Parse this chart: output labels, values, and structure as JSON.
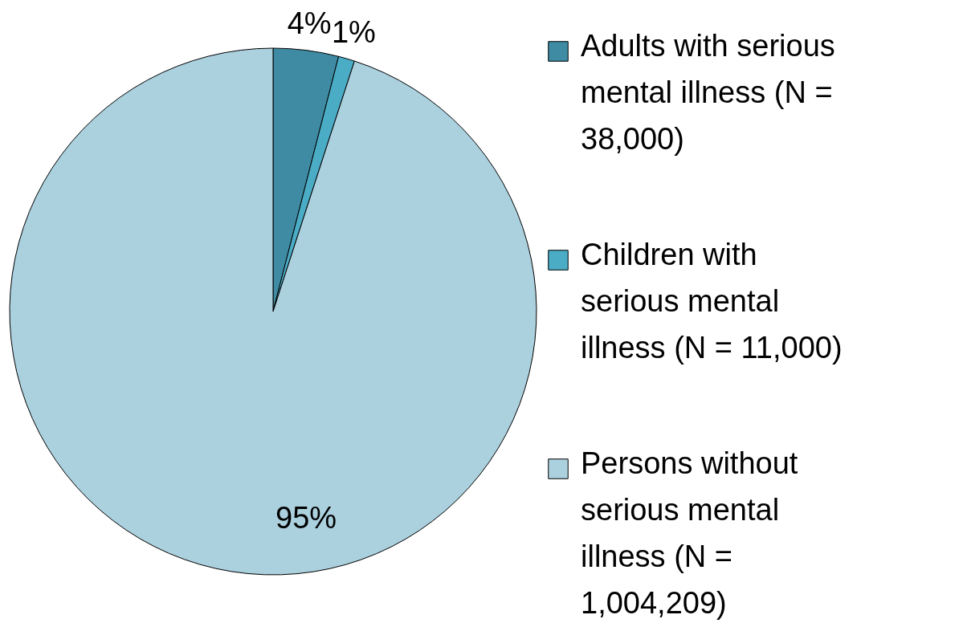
{
  "chart_data": {
    "type": "pie",
    "categories": [
      "Adults with serious mental illness (N = 38,000)",
      "Children with serious mental illness (N = 11,000)",
      "Persons without serious mental illness (N = 1,004,209)"
    ],
    "values": [
      4,
      1,
      95
    ],
    "colors": [
      "#3e8ba3",
      "#4bacc6",
      "#abd0de"
    ],
    "value_labels": [
      "4%",
      "1%",
      "95%"
    ],
    "legend": "right"
  }
}
